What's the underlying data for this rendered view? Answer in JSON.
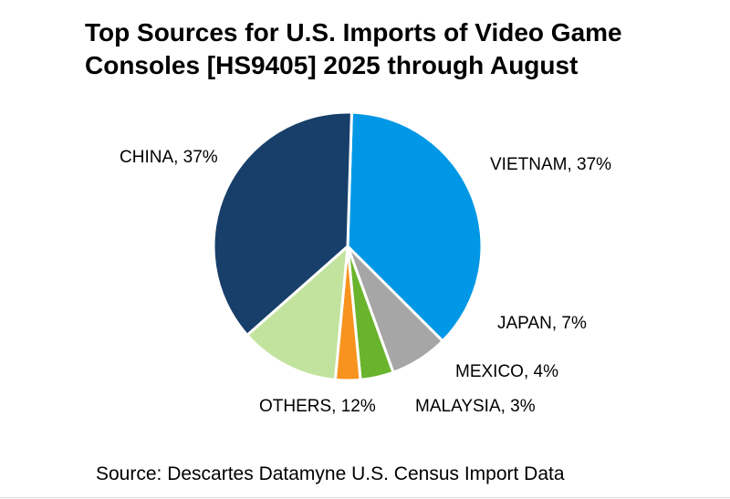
{
  "chart_data": {
    "type": "pie",
    "title_lines": [
      "Top Sources for U.S. Imports of Video Game",
      "Consoles [HS9405] 2025 through August"
    ],
    "slices": [
      {
        "label": "VIETNAM, 37%",
        "name": "VIETNAM",
        "value": 37,
        "color": "#0098e6"
      },
      {
        "label": "JAPAN, 7%",
        "name": "JAPAN",
        "value": 7,
        "color": "#a6a6a6"
      },
      {
        "label": "MEXICO, 4%",
        "name": "MEXICO",
        "value": 4,
        "color": "#6ab42d"
      },
      {
        "label": "MALAYSIA, 3%",
        "name": "MALAYSIA",
        "value": 3,
        "color": "#f7931e"
      },
      {
        "label": "OTHERS, 12%",
        "name": "OTHERS",
        "value": 12,
        "color": "#c2e39e"
      },
      {
        "label": "CHINA, 37%",
        "name": "CHINA",
        "value": 37,
        "color": "#173f69"
      }
    ]
  },
  "source": "Source: Descartes Datamyne U.S. Census Import Data"
}
